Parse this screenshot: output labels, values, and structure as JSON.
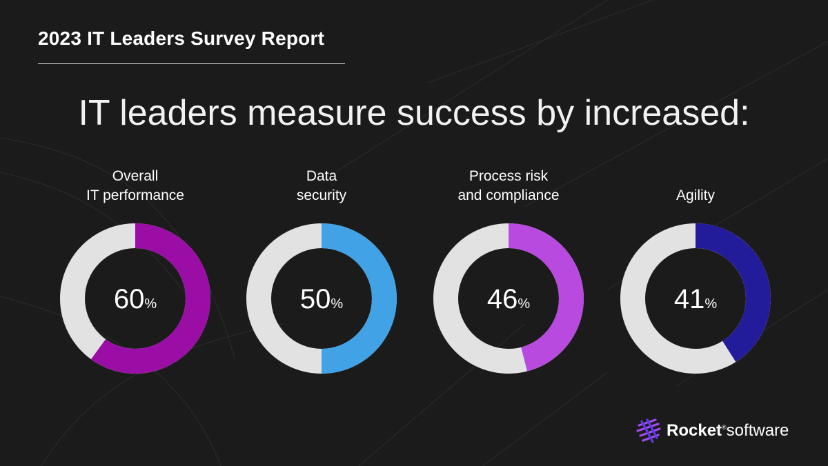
{
  "report_title": "2023 IT Leaders Survey Report",
  "headline": "IT leaders measure success by increased:",
  "colors": {
    "track": "#e2e2e2",
    "background": "#1b1b1b"
  },
  "chart_data": {
    "type": "pie",
    "style": "donut",
    "title": "IT leaders measure success by increased:",
    "items": [
      {
        "label_lines": [
          "Overall",
          "IT performance"
        ],
        "value": 60,
        "value_text": "60",
        "unit": "%",
        "color": "#9b0ea6"
      },
      {
        "label_lines": [
          "Data",
          "security"
        ],
        "value": 50,
        "value_text": "50",
        "unit": "%",
        "color": "#41a3e6"
      },
      {
        "label_lines": [
          "Process risk",
          "and compliance"
        ],
        "value": 46,
        "value_text": "46",
        "unit": "%",
        "color": "#b84ae0"
      },
      {
        "label_lines": [
          "Agility"
        ],
        "value": 41,
        "value_text": "41",
        "unit": "%",
        "color": "#231c9a"
      }
    ]
  },
  "logo": {
    "brand": "Rocket",
    "suffix": "software",
    "registered": "®",
    "icon": "rocket-logo-icon"
  }
}
